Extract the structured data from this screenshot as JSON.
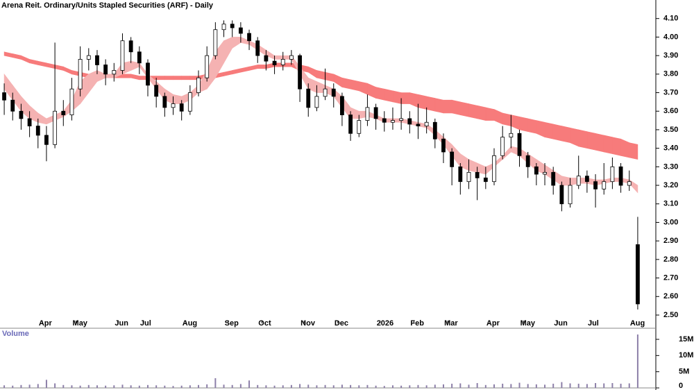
{
  "chart_data": {
    "type": "candlestick",
    "title": "Arena Reit. Ordinary/Units Stapled Securities (ARF) - Daily",
    "categories": [
      null,
      null,
      null,
      null,
      null,
      "Apr",
      null,
      null,
      null,
      "May",
      null,
      null,
      null,
      null,
      "Jun",
      null,
      null,
      "Jul",
      null,
      null,
      null,
      null,
      "Aug",
      null,
      null,
      null,
      null,
      "Sep",
      null,
      null,
      null,
      "Oct",
      null,
      null,
      null,
      null,
      "Nov",
      null,
      null,
      null,
      "Dec",
      null,
      null,
      null,
      null,
      "2026",
      null,
      null,
      null,
      "Feb",
      null,
      null,
      null,
      "Mar",
      null,
      null,
      null,
      null,
      "Apr",
      null,
      null,
      null,
      "May",
      null,
      null,
      null,
      "Jun",
      null,
      null,
      null,
      "Jul",
      null,
      null,
      null,
      null,
      "Aug"
    ],
    "open": [
      3.7,
      3.66,
      3.6,
      3.56,
      3.52,
      3.47,
      3.42,
      3.6,
      3.58,
      3.72,
      3.88,
      3.9,
      3.85,
      3.8,
      3.82,
      3.98,
      3.92,
      3.86,
      3.74,
      3.68,
      3.62,
      3.64,
      3.6,
      3.7,
      3.78,
      3.9,
      4.04,
      4.07,
      4.05,
      4.02,
      3.98,
      3.9,
      3.87,
      3.85,
      3.88,
      3.9,
      3.72,
      3.62,
      3.68,
      3.72,
      3.68,
      3.58,
      3.48,
      3.55,
      3.62,
      3.56,
      3.54,
      3.55,
      3.56,
      3.53,
      3.52,
      3.54,
      3.45,
      3.38,
      3.3,
      3.22,
      3.27,
      3.24,
      3.22,
      3.36,
      3.46,
      3.48,
      3.36,
      3.3,
      3.26,
      3.27,
      3.2,
      3.1,
      3.2,
      3.25,
      3.22,
      3.18,
      3.22,
      3.3,
      3.2,
      2.88
    ],
    "high": [
      3.75,
      3.7,
      3.64,
      3.6,
      3.56,
      3.52,
      3.97,
      3.66,
      3.78,
      3.95,
      3.94,
      3.93,
      3.88,
      3.86,
      4.02,
      4.0,
      3.95,
      3.88,
      3.78,
      3.7,
      3.68,
      3.66,
      3.74,
      3.82,
      3.95,
      4.08,
      4.09,
      4.09,
      4.08,
      4.04,
      4.0,
      3.93,
      3.9,
      3.92,
      3.93,
      3.91,
      3.75,
      3.74,
      3.83,
      3.75,
      3.7,
      3.6,
      3.58,
      3.69,
      3.64,
      3.6,
      3.62,
      3.67,
      3.6,
      3.64,
      3.62,
      3.56,
      3.48,
      3.4,
      3.32,
      3.34,
      3.3,
      3.3,
      3.4,
      3.52,
      3.58,
      3.5,
      3.38,
      3.32,
      3.32,
      3.3,
      3.22,
      3.24,
      3.36,
      3.28,
      3.26,
      3.32,
      3.35,
      3.32,
      3.28,
      3.03
    ],
    "low": [
      3.58,
      3.55,
      3.5,
      3.46,
      3.4,
      3.33,
      3.4,
      3.52,
      3.55,
      3.68,
      3.82,
      3.8,
      3.74,
      3.76,
      3.8,
      3.86,
      3.8,
      3.68,
      3.62,
      3.57,
      3.58,
      3.55,
      3.58,
      3.68,
      3.76,
      3.88,
      4.0,
      4.0,
      3.97,
      3.93,
      3.86,
      3.82,
      3.8,
      3.82,
      3.85,
      3.65,
      3.57,
      3.6,
      3.66,
      3.62,
      3.52,
      3.44,
      3.46,
      3.52,
      3.5,
      3.49,
      3.5,
      3.5,
      3.48,
      3.45,
      3.48,
      3.4,
      3.32,
      3.2,
      3.15,
      3.18,
      3.12,
      3.18,
      3.2,
      3.34,
      3.4,
      3.3,
      3.24,
      3.2,
      3.2,
      3.15,
      3.06,
      3.08,
      3.18,
      3.16,
      3.08,
      3.15,
      3.18,
      3.16,
      3.17,
      2.53
    ],
    "close": [
      3.66,
      3.6,
      3.56,
      3.52,
      3.47,
      3.42,
      3.6,
      3.58,
      3.72,
      3.88,
      3.9,
      3.85,
      3.8,
      3.82,
      3.98,
      3.92,
      3.86,
      3.74,
      3.68,
      3.62,
      3.64,
      3.6,
      3.7,
      3.78,
      3.9,
      4.04,
      4.07,
      4.05,
      4.02,
      3.98,
      3.9,
      3.87,
      3.85,
      3.88,
      3.9,
      3.72,
      3.62,
      3.68,
      3.72,
      3.68,
      3.58,
      3.48,
      3.55,
      3.62,
      3.56,
      3.54,
      3.55,
      3.56,
      3.53,
      3.52,
      3.54,
      3.45,
      3.38,
      3.3,
      3.22,
      3.27,
      3.24,
      3.22,
      3.36,
      3.46,
      3.48,
      3.36,
      3.3,
      3.26,
      3.27,
      3.2,
      3.1,
      3.2,
      3.25,
      3.22,
      3.18,
      3.22,
      3.3,
      3.2,
      3.22,
      2.56
    ],
    "up_color": "#ffffff",
    "down_color": "#000000",
    "ribbons": [
      {
        "color": "#f77b7b",
        "upper": [
          3.92,
          3.91,
          3.9,
          3.88,
          3.87,
          3.86,
          3.85,
          3.84,
          3.82,
          3.81,
          3.8,
          3.8,
          3.8,
          3.8,
          3.8,
          3.8,
          3.79,
          3.79,
          3.79,
          3.79,
          3.79,
          3.79,
          3.79,
          3.79,
          3.8,
          3.8,
          3.81,
          3.82,
          3.83,
          3.84,
          3.85,
          3.85,
          3.86,
          3.86,
          3.86,
          3.85,
          3.84,
          3.82,
          3.81,
          3.8,
          3.78,
          3.77,
          3.76,
          3.75,
          3.73,
          3.72,
          3.71,
          3.7,
          3.7,
          3.69,
          3.68,
          3.67,
          3.66,
          3.66,
          3.65,
          3.64,
          3.63,
          3.62,
          3.61,
          3.59,
          3.58,
          3.57,
          3.56,
          3.55,
          3.54,
          3.53,
          3.52,
          3.51,
          3.5,
          3.49,
          3.48,
          3.47,
          3.46,
          3.45,
          3.43,
          3.42
        ],
        "lower": [
          3.9,
          3.89,
          3.88,
          3.86,
          3.85,
          3.84,
          3.83,
          3.82,
          3.8,
          3.79,
          3.78,
          3.78,
          3.78,
          3.78,
          3.78,
          3.78,
          3.77,
          3.77,
          3.77,
          3.77,
          3.77,
          3.77,
          3.77,
          3.77,
          3.78,
          3.78,
          3.79,
          3.8,
          3.81,
          3.82,
          3.83,
          3.83,
          3.84,
          3.84,
          3.84,
          3.82,
          3.81,
          3.78,
          3.77,
          3.76,
          3.73,
          3.72,
          3.71,
          3.69,
          3.67,
          3.66,
          3.65,
          3.64,
          3.64,
          3.62,
          3.61,
          3.6,
          3.59,
          3.59,
          3.58,
          3.57,
          3.56,
          3.55,
          3.55,
          3.53,
          3.52,
          3.5,
          3.49,
          3.48,
          3.46,
          3.45,
          3.44,
          3.43,
          3.41,
          3.4,
          3.39,
          3.38,
          3.37,
          3.36,
          3.35,
          3.34
        ]
      },
      {
        "color": "#f5b2b2",
        "upper": [
          3.8,
          3.74,
          3.68,
          3.63,
          3.59,
          3.56,
          3.58,
          3.6,
          3.66,
          3.76,
          3.8,
          3.82,
          3.8,
          3.8,
          3.86,
          3.87,
          3.86,
          3.8,
          3.76,
          3.72,
          3.69,
          3.68,
          3.7,
          3.74,
          3.82,
          3.92,
          3.98,
          4.0,
          4.0,
          3.98,
          3.96,
          3.93,
          3.9,
          3.9,
          3.9,
          3.84,
          3.78,
          3.76,
          3.74,
          3.72,
          3.68,
          3.62,
          3.6,
          3.6,
          3.58,
          3.56,
          3.56,
          3.56,
          3.55,
          3.54,
          3.53,
          3.5,
          3.46,
          3.42,
          3.37,
          3.34,
          3.32,
          3.3,
          3.32,
          3.36,
          3.41,
          3.4,
          3.37,
          3.34,
          3.31,
          3.28,
          3.25,
          3.24,
          3.24,
          3.24,
          3.23,
          3.23,
          3.24,
          3.24,
          3.23,
          3.2
        ],
        "lower": [
          3.72,
          3.66,
          3.6,
          3.56,
          3.54,
          3.53,
          3.55,
          3.57,
          3.6,
          3.64,
          3.7,
          3.76,
          3.78,
          3.78,
          3.8,
          3.82,
          3.84,
          3.78,
          3.72,
          3.66,
          3.64,
          3.64,
          3.66,
          3.7,
          3.72,
          3.78,
          3.86,
          3.94,
          3.97,
          3.96,
          3.93,
          3.9,
          3.88,
          3.88,
          3.88,
          3.8,
          3.72,
          3.7,
          3.7,
          3.68,
          3.62,
          3.56,
          3.56,
          3.57,
          3.56,
          3.54,
          3.54,
          3.54,
          3.53,
          3.52,
          3.51,
          3.47,
          3.42,
          3.36,
          3.3,
          3.28,
          3.27,
          3.26,
          3.3,
          3.34,
          3.38,
          3.36,
          3.32,
          3.28,
          3.26,
          3.23,
          3.2,
          3.2,
          3.21,
          3.21,
          3.2,
          3.21,
          3.22,
          3.22,
          3.21,
          3.16
        ]
      }
    ],
    "ylim": [
      2.47,
      4.2
    ],
    "yticks": [
      {
        "value": 2.5,
        "label": "2.50"
      },
      {
        "value": 2.6,
        "label": "2.60"
      },
      {
        "value": 2.7,
        "label": "2.70"
      },
      {
        "value": 2.8,
        "label": "2.80"
      },
      {
        "value": 2.9,
        "label": "2.90"
      },
      {
        "value": 3.0,
        "label": "3.00"
      },
      {
        "value": 3.1,
        "label": "3.10"
      },
      {
        "value": 3.2,
        "label": "3.20"
      },
      {
        "value": 3.3,
        "label": "3.30"
      },
      {
        "value": 3.4,
        "label": "3.40"
      },
      {
        "value": 3.5,
        "label": "3.50"
      },
      {
        "value": 3.6,
        "label": "3.60"
      },
      {
        "value": 3.7,
        "label": "3.70"
      },
      {
        "value": 3.8,
        "label": "3.80"
      },
      {
        "value": 3.9,
        "label": "3.90"
      },
      {
        "value": 4.0,
        "label": "4.00"
      },
      {
        "value": 4.1,
        "label": "4.10"
      }
    ],
    "volume": {
      "name": "Volume",
      "color": "#8c7fa8",
      "values": [
        800000,
        700000,
        900000,
        1000000,
        1200000,
        2500000,
        1400000,
        900000,
        800000,
        700000,
        900000,
        800000,
        700000,
        800000,
        1000000,
        800000,
        700000,
        900000,
        800000,
        700000,
        600000,
        700000,
        800000,
        900000,
        1100000,
        3000000,
        1000000,
        900000,
        1200000,
        2300000,
        900000,
        800000,
        700000,
        800000,
        900000,
        1200000,
        1000000,
        800000,
        900000,
        800000,
        1000000,
        900000,
        800000,
        900000,
        700000,
        600000,
        800000,
        700000,
        800000,
        900000,
        800000,
        1000000,
        1100000,
        1300000,
        1400000,
        1000000,
        1500000,
        900000,
        1100000,
        1300000,
        1200000,
        1600000,
        1200000,
        1100000,
        1000000,
        1300000,
        1800000,
        1400000,
        1300000,
        1200000,
        1500000,
        1400000,
        1500000,
        1300000,
        1400000,
        16500000
      ],
      "ylim": [
        0,
        18000000
      ],
      "yticks": [
        0,
        {
          "value": 5000000,
          "label": "5M"
        },
        {
          "value": 10000000,
          "label": "10M"
        },
        {
          "value": 15000000,
          "label": "15M"
        }
      ]
    }
  }
}
